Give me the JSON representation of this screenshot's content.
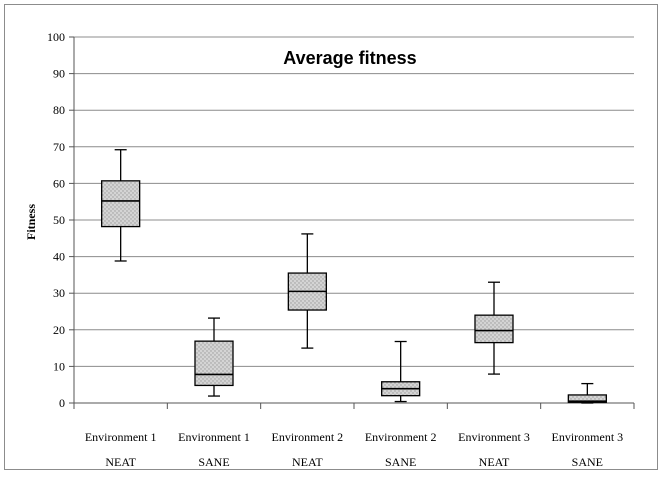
{
  "chart_data": {
    "type": "box",
    "title": "Average fitness",
    "xlabel": "",
    "ylabel": "Fitness",
    "ylim": [
      0,
      100
    ],
    "yticks": [
      0,
      10,
      20,
      30,
      40,
      50,
      60,
      70,
      80,
      90,
      100
    ],
    "grid": true,
    "legend": "none",
    "categories": [
      {
        "line1": "Environment 1",
        "line2": "NEAT"
      },
      {
        "line1": "Environment 1",
        "line2": "SANE"
      },
      {
        "line1": "Environment 2",
        "line2": "NEAT"
      },
      {
        "line1": "Environment 2",
        "line2": "SANE"
      },
      {
        "line1": "Environment 3",
        "line2": "NEAT"
      },
      {
        "line1": "Environment 3",
        "line2": "SANE"
      }
    ],
    "boxes": [
      {
        "min": 38.8,
        "q1": 48.2,
        "median": 55.2,
        "q3": 60.7,
        "max": 69.2
      },
      {
        "min": 1.9,
        "q1": 4.8,
        "median": 7.8,
        "q3": 16.9,
        "max": 23.2
      },
      {
        "min": 15.0,
        "q1": 25.4,
        "median": 30.5,
        "q3": 35.5,
        "max": 46.2
      },
      {
        "min": 0.4,
        "q1": 2.0,
        "median": 3.9,
        "q3": 5.8,
        "max": 16.8
      },
      {
        "min": 7.9,
        "q1": 16.5,
        "median": 19.8,
        "q3": 24.0,
        "max": 33.0
      },
      {
        "min": 0.0,
        "q1": 0.2,
        "median": 0.5,
        "q3": 2.2,
        "max": 5.3
      }
    ],
    "colors": {
      "box_fill": "#cfcfcf",
      "box_dots": "#9a9a9a",
      "grid": "#8c8c8c",
      "axis": "#555555"
    }
  }
}
